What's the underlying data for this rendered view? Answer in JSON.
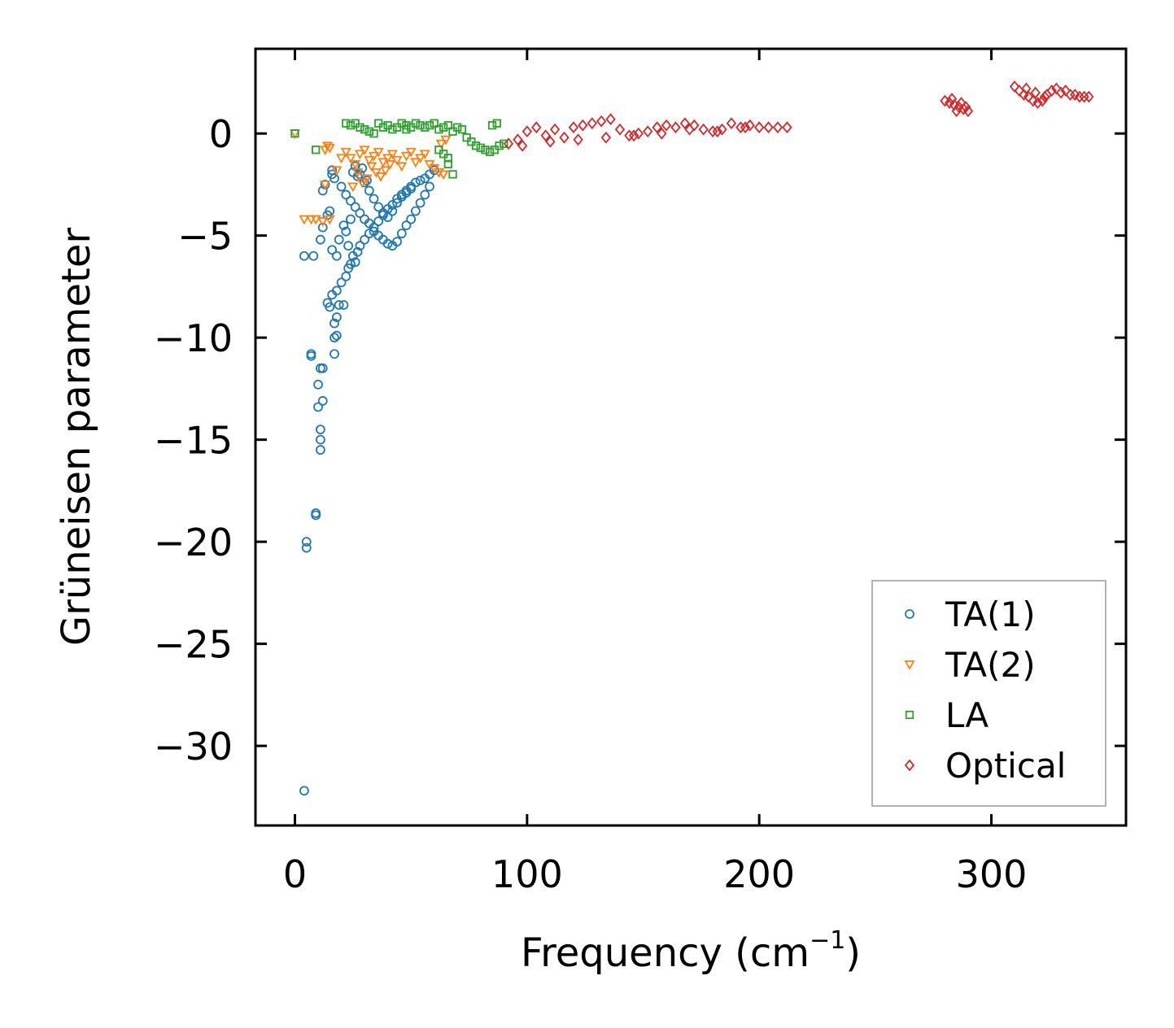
{
  "chart_data": {
    "type": "scatter",
    "title": "",
    "xlabel": "Frequency (cm",
    "xlabel_sup": "−1",
    "xlabel_end": ")",
    "ylabel": "Grüneisen parameter",
    "xlim": [
      -17,
      358
    ],
    "ylim": [
      -33.9,
      4.15
    ],
    "xticks": [
      0,
      100,
      200,
      300
    ],
    "xtick_labels": [
      "0",
      "100",
      "200",
      "300"
    ],
    "yticks": [
      0,
      -5,
      -10,
      -15,
      -20,
      -25,
      -30
    ],
    "ytick_labels": [
      "0",
      "−5",
      "−10",
      "−15",
      "−20",
      "−25",
      "−30"
    ],
    "grid": false,
    "legend_position": "lower-right",
    "series": [
      {
        "name": "TA(1)",
        "marker": "circle",
        "color": "#1f77b4",
        "points": [
          [
            4,
            -32.2
          ],
          [
            5,
            -20.3
          ],
          [
            5,
            -20.0
          ],
          [
            9,
            -18.7
          ],
          [
            9,
            -18.6
          ],
          [
            11,
            -15.5
          ],
          [
            11,
            -15.0
          ],
          [
            11,
            -14.5
          ],
          [
            12,
            -13.1
          ],
          [
            10,
            -13.4
          ],
          [
            10,
            -12.3
          ],
          [
            12,
            -11.5
          ],
          [
            11,
            -11.5
          ],
          [
            7,
            -10.9
          ],
          [
            7,
            -10.8
          ],
          [
            17,
            -10.8
          ],
          [
            17,
            -10.0
          ],
          [
            18,
            -9.9
          ],
          [
            17,
            -9.3
          ],
          [
            18,
            -9.0
          ],
          [
            15,
            -8.5
          ],
          [
            14,
            -8.3
          ],
          [
            19,
            -8.4
          ],
          [
            21,
            -8.4
          ],
          [
            16,
            -7.9
          ],
          [
            18,
            -7.7
          ],
          [
            20,
            -7.3
          ],
          [
            22,
            -7.0
          ],
          [
            23,
            -6.6
          ],
          [
            24,
            -6.4
          ],
          [
            25,
            -6.0
          ],
          [
            27,
            -5.8
          ],
          [
            28,
            -5.5
          ],
          [
            30,
            -5.2
          ],
          [
            32,
            -4.9
          ],
          [
            34,
            -4.6
          ],
          [
            36,
            -4.3
          ],
          [
            38,
            -4.0
          ],
          [
            40,
            -3.7
          ],
          [
            42,
            -3.5
          ],
          [
            44,
            -3.2
          ],
          [
            46,
            -3.0
          ],
          [
            48,
            -2.8
          ],
          [
            50,
            -2.6
          ],
          [
            52,
            -2.4
          ],
          [
            54,
            -2.3
          ],
          [
            56,
            -2.2
          ],
          [
            58,
            -2.0
          ],
          [
            60,
            -1.8
          ],
          [
            4,
            -6.0
          ],
          [
            8,
            -6.0
          ],
          [
            11,
            -5.2
          ],
          [
            12,
            -4.6
          ],
          [
            14,
            -4.0
          ],
          [
            15,
            -3.8
          ],
          [
            12,
            -2.8
          ],
          [
            13,
            -2.5
          ],
          [
            16,
            -2.0
          ],
          [
            17,
            -2.2
          ],
          [
            16,
            -1.8
          ],
          [
            20,
            -2.6
          ],
          [
            22,
            -3.0
          ],
          [
            24,
            -3.3
          ],
          [
            26,
            -3.6
          ],
          [
            28,
            -3.9
          ],
          [
            30,
            -4.2
          ],
          [
            32,
            -4.4
          ],
          [
            34,
            -4.8
          ],
          [
            36,
            -5.0
          ],
          [
            38,
            -5.2
          ],
          [
            40,
            -5.4
          ],
          [
            42,
            -5.5
          ],
          [
            44,
            -5.3
          ],
          [
            46,
            -4.9
          ],
          [
            48,
            -4.5
          ],
          [
            50,
            -4.2
          ],
          [
            52,
            -3.8
          ],
          [
            54,
            -3.4
          ],
          [
            56,
            -3.0
          ],
          [
            58,
            -2.6
          ],
          [
            26,
            -1.6
          ],
          [
            28,
            -2.0
          ],
          [
            30,
            -2.4
          ],
          [
            32,
            -2.8
          ],
          [
            34,
            -3.2
          ],
          [
            36,
            -3.6
          ],
          [
            38,
            -3.9
          ],
          [
            40,
            -4.1
          ],
          [
            42,
            -3.8
          ],
          [
            44,
            -3.4
          ],
          [
            46,
            -3.1
          ],
          [
            48,
            -2.9
          ],
          [
            50,
            -2.7
          ],
          [
            25,
            -1.9
          ],
          [
            27,
            -2.1
          ],
          [
            29,
            -1.7
          ],
          [
            31,
            -2.3
          ],
          [
            22,
            -4.8
          ],
          [
            23,
            -5.5
          ],
          [
            26,
            -6.3
          ],
          [
            18,
            -6.0
          ],
          [
            16,
            -5.7
          ],
          [
            19,
            -5.2
          ],
          [
            21,
            -4.5
          ],
          [
            24,
            -4.2
          ]
        ]
      },
      {
        "name": "TA(2)",
        "marker": "triangle-down",
        "color": "#ff7f0e",
        "points": [
          [
            0,
            0.0
          ],
          [
            4,
            -4.2
          ],
          [
            7,
            -4.2
          ],
          [
            9,
            -4.2
          ],
          [
            12,
            -4.3
          ],
          [
            15,
            -4.2
          ],
          [
            13,
            -2.5
          ],
          [
            14,
            -0.6
          ],
          [
            13,
            -0.8
          ],
          [
            15,
            -0.7
          ],
          [
            18,
            -1.8
          ],
          [
            20,
            -1.2
          ],
          [
            22,
            -0.9
          ],
          [
            24,
            -1.2
          ],
          [
            26,
            -1.5
          ],
          [
            28,
            -1.0
          ],
          [
            30,
            -0.8
          ],
          [
            32,
            -1.3
          ],
          [
            34,
            -1.1
          ],
          [
            36,
            -0.9
          ],
          [
            38,
            -1.4
          ],
          [
            40,
            -1.2
          ],
          [
            42,
            -1.0
          ],
          [
            44,
            -1.3
          ],
          [
            46,
            -1.6
          ],
          [
            48,
            -1.1
          ],
          [
            50,
            -0.9
          ],
          [
            52,
            -1.4
          ],
          [
            54,
            -1.2
          ],
          [
            56,
            -1.0
          ],
          [
            58,
            -1.5
          ],
          [
            60,
            -1.7
          ],
          [
            62,
            -1.9
          ],
          [
            64,
            -2.0
          ],
          [
            63,
            -0.5
          ],
          [
            65,
            -0.3
          ],
          [
            27,
            -1.9
          ],
          [
            29,
            -2.4
          ],
          [
            31,
            -2.2
          ],
          [
            25,
            -2.6
          ],
          [
            33,
            -1.6
          ],
          [
            35,
            -1.9
          ],
          [
            37,
            -2.1
          ],
          [
            39,
            -1.8
          ],
          [
            41,
            -1.5
          ]
        ]
      },
      {
        "name": "LA",
        "marker": "square",
        "color": "#2ca02c",
        "points": [
          [
            0,
            0.0
          ],
          [
            9,
            -0.8
          ],
          [
            22,
            0.5
          ],
          [
            24,
            0.4
          ],
          [
            26,
            0.5
          ],
          [
            28,
            0.3
          ],
          [
            30,
            0.2
          ],
          [
            32,
            0.1
          ],
          [
            36,
            0.5
          ],
          [
            38,
            0.3
          ],
          [
            40,
            0.4
          ],
          [
            42,
            0.2
          ],
          [
            44,
            0.3
          ],
          [
            46,
            0.5
          ],
          [
            48,
            0.4
          ],
          [
            50,
            0.3
          ],
          [
            52,
            0.5
          ],
          [
            54,
            0.4
          ],
          [
            56,
            0.3
          ],
          [
            58,
            0.4
          ],
          [
            60,
            0.5
          ],
          [
            62,
            0.2
          ],
          [
            64,
            0.3
          ],
          [
            66,
            0.4
          ],
          [
            68,
            0.1
          ],
          [
            70,
            0.3
          ],
          [
            72,
            0.2
          ],
          [
            74,
            -0.2
          ],
          [
            76,
            -0.4
          ],
          [
            78,
            -0.6
          ],
          [
            80,
            -0.7
          ],
          [
            82,
            -0.8
          ],
          [
            84,
            -0.9
          ],
          [
            86,
            -0.8
          ],
          [
            88,
            -0.6
          ],
          [
            90,
            -0.5
          ],
          [
            85,
            0.4
          ],
          [
            87,
            0.5
          ],
          [
            64,
            -1.0
          ],
          [
            66,
            -1.5
          ],
          [
            68,
            -2.0
          ],
          [
            66,
            -1.2
          ],
          [
            62,
            -0.8
          ],
          [
            34,
            0.0
          ],
          [
            48,
            0.2
          ]
        ]
      },
      {
        "name": "Optical",
        "marker": "diamond",
        "color": "#d62728",
        "points": [
          [
            92,
            -0.5
          ],
          [
            96,
            -0.3
          ],
          [
            100,
            0.1
          ],
          [
            104,
            0.3
          ],
          [
            108,
            -0.1
          ],
          [
            112,
            0.2
          ],
          [
            116,
            -0.2
          ],
          [
            120,
            0.3
          ],
          [
            124,
            0.4
          ],
          [
            128,
            0.5
          ],
          [
            132,
            0.6
          ],
          [
            136,
            0.7
          ],
          [
            140,
            0.2
          ],
          [
            144,
            -0.1
          ],
          [
            148,
            0.0
          ],
          [
            152,
            0.1
          ],
          [
            156,
            0.3
          ],
          [
            160,
            0.4
          ],
          [
            164,
            0.3
          ],
          [
            168,
            0.5
          ],
          [
            172,
            0.4
          ],
          [
            176,
            0.2
          ],
          [
            180,
            0.1
          ],
          [
            184,
            0.2
          ],
          [
            188,
            0.5
          ],
          [
            192,
            0.3
          ],
          [
            196,
            0.4
          ],
          [
            200,
            0.3
          ],
          [
            204,
            0.3
          ],
          [
            208,
            0.3
          ],
          [
            212,
            0.3
          ],
          [
            98,
            -0.6
          ],
          [
            110,
            -0.4
          ],
          [
            122,
            -0.3
          ],
          [
            134,
            -0.2
          ],
          [
            146,
            -0.1
          ],
          [
            158,
            0.0
          ],
          [
            170,
            0.2
          ],
          [
            182,
            0.1
          ],
          [
            194,
            0.3
          ],
          [
            280,
            1.6
          ],
          [
            282,
            1.5
          ],
          [
            284,
            1.4
          ],
          [
            286,
            1.3
          ],
          [
            288,
            1.2
          ],
          [
            290,
            1.1
          ],
          [
            283,
            1.7
          ],
          [
            287,
            1.5
          ],
          [
            289,
            1.3
          ],
          [
            285,
            1.1
          ],
          [
            310,
            2.3
          ],
          [
            312,
            2.1
          ],
          [
            314,
            1.9
          ],
          [
            316,
            1.8
          ],
          [
            318,
            1.6
          ],
          [
            320,
            1.5
          ],
          [
            322,
            1.6
          ],
          [
            324,
            1.9
          ],
          [
            326,
            2.1
          ],
          [
            328,
            2.2
          ],
          [
            330,
            2.0
          ],
          [
            332,
            2.1
          ],
          [
            334,
            1.9
          ],
          [
            336,
            1.9
          ],
          [
            338,
            1.8
          ],
          [
            340,
            1.8
          ],
          [
            342,
            1.8
          ],
          [
            315,
            2.2
          ],
          [
            319,
            2.0
          ],
          [
            323,
            1.8
          ]
        ]
      }
    ]
  }
}
